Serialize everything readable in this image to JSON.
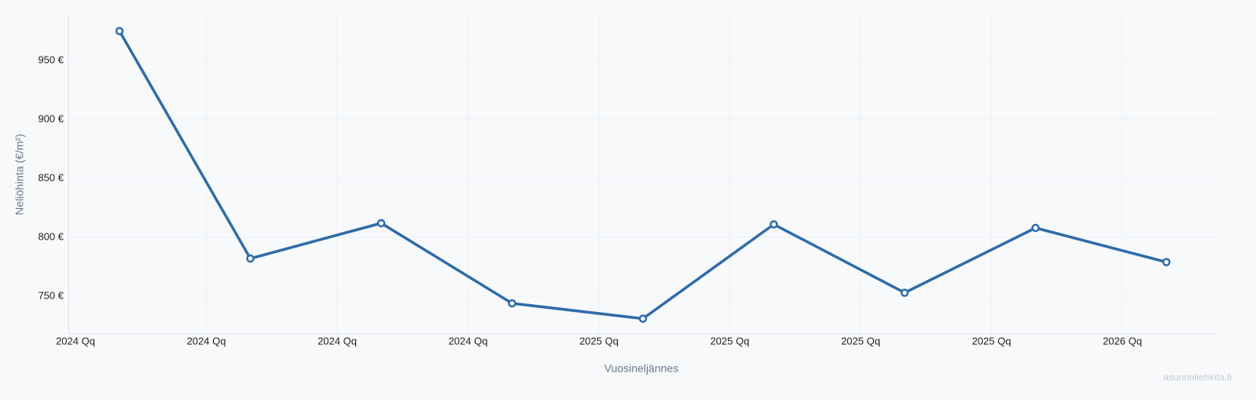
{
  "chart_data": {
    "type": "line",
    "x_label": "Vuosineljännes",
    "y_label": "Neliöhinta (€/m²)",
    "watermark": "asunnollehinta.fi",
    "categories": [
      "2024 Qq",
      "2024 Qq",
      "2024 Qq",
      "2024 Qq",
      "2025 Qq",
      "2025 Qq",
      "2025 Qq",
      "2025 Qq",
      "2026 Qq"
    ],
    "series": [
      {
        "name": "Neliöhinta",
        "color": "#2f6ca8",
        "values": [
          975,
          782,
          812,
          744,
          731,
          811,
          753,
          808,
          779
        ]
      }
    ],
    "ylim": [
      718,
      988
    ],
    "yticks": [
      {
        "value": 750,
        "label": "750 €"
      },
      {
        "value": 800,
        "label": "800 €"
      },
      {
        "value": 850,
        "label": "850 €"
      },
      {
        "value": 900,
        "label": "900 €"
      },
      {
        "value": 950,
        "label": "950 €"
      }
    ],
    "grid": true
  }
}
